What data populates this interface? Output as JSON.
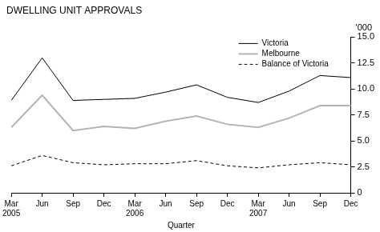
{
  "chart_data": {
    "type": "line",
    "title": "DWELLING UNIT APPROVALS",
    "ylabel": "'000",
    "xlabel": "Quarter",
    "categories": [
      "Mar 2005",
      "Jun",
      "Sep",
      "Dec",
      "Mar 2006",
      "Jun",
      "Sep",
      "Dec",
      "Mar 2007",
      "Jun",
      "Sep",
      "Dec"
    ],
    "series": [
      {
        "name": "Victoria",
        "color": "#000000",
        "line_style": "solid",
        "values": [
          8.9,
          13.0,
          8.9,
          9.0,
          9.1,
          9.7,
          10.4,
          9.2,
          8.7,
          9.8,
          11.3,
          11.1
        ]
      },
      {
        "name": "Melbourne",
        "color": "#b4b4b4",
        "line_style": "solid",
        "values": [
          6.3,
          9.4,
          6.0,
          6.4,
          6.2,
          6.9,
          7.4,
          6.6,
          6.3,
          7.2,
          8.4,
          8.4
        ]
      },
      {
        "name": "Balance of Victoria",
        "color": "#000000",
        "line_style": "dashed",
        "values": [
          2.6,
          3.6,
          2.9,
          2.7,
          2.8,
          2.8,
          3.1,
          2.6,
          2.4,
          2.7,
          2.9,
          2.7
        ]
      }
    ],
    "ylim": [
      0,
      15
    ],
    "yticks": [
      0,
      2.5,
      {
        "value": 5,
        "label": "5.0"
      },
      {
        "value": 7.5,
        "label": "7.5"
      },
      {
        "value": 10,
        "label": "10.0"
      },
      {
        "value": 12.5,
        "label": "12.5"
      },
      {
        "value": 15,
        "label": "15.0"
      }
    ],
    "grid": false,
    "legend": "upper right"
  }
}
